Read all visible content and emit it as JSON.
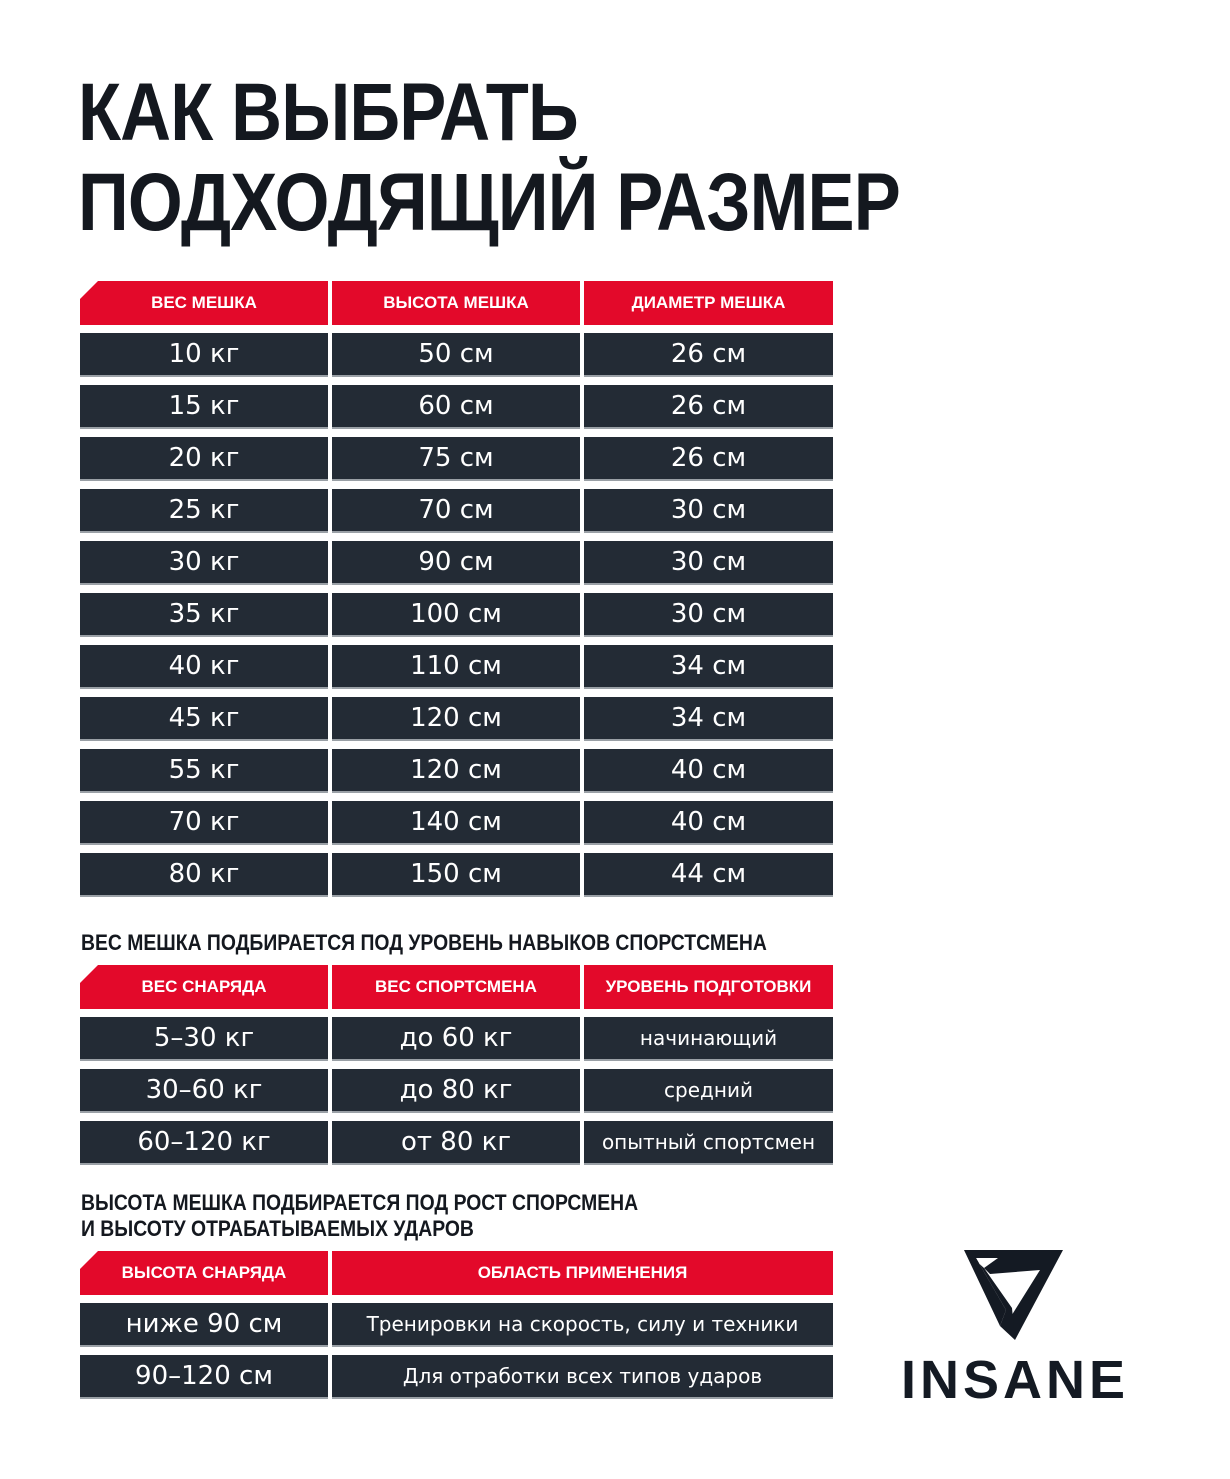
{
  "title": {
    "line1": "КАК ВЫБРАТЬ",
    "line2": "ПОДХОДЯЩИЙ РАЗМЕР"
  },
  "colors": {
    "accent": "#e3092a",
    "row": "#232b35",
    "text": "#14181f"
  },
  "size_table": {
    "headers": [
      "ВЕС МЕШКА",
      "ВЫСОТА МЕШКА",
      "ДИАМЕТР МЕШКА"
    ],
    "rows": [
      [
        "10 кг",
        "50 см",
        "26 см"
      ],
      [
        "15 кг",
        "60 см",
        "26 см"
      ],
      [
        "20 кг",
        "75 см",
        "26 см"
      ],
      [
        "25 кг",
        "70 см",
        "30 см"
      ],
      [
        "30 кг",
        "90 см",
        "30 см"
      ],
      [
        "35 кг",
        "100 см",
        "30 см"
      ],
      [
        "40 кг",
        "110 см",
        "34 см"
      ],
      [
        "45 кг",
        "120 см",
        "34 см"
      ],
      [
        "55 кг",
        "120 см",
        "40 см"
      ],
      [
        "70 кг",
        "140 см",
        "40 см"
      ],
      [
        "80 кг",
        "150 см",
        "44 см"
      ]
    ]
  },
  "weight_section": {
    "title": "ВЕС МЕШКА ПОДБИРАЕТСЯ ПОД УРОВЕНЬ НАВЫКОВ СПОРСТСМЕНА",
    "headers": [
      "ВЕС СНАРЯДА",
      "ВЕС СПОРТСМЕНА",
      "УРОВЕНЬ ПОДГОТОВКИ"
    ],
    "rows": [
      [
        "5–30 кг",
        "до 60 кг",
        "начинающий"
      ],
      [
        "30–60 кг",
        "до 80 кг",
        "средний"
      ],
      [
        "60–120 кг",
        "от 80 кг",
        "опытный спортсмен"
      ]
    ]
  },
  "height_section": {
    "title_line1": "ВЫСОТА МЕШКА ПОДБИРАЕТСЯ ПОД РОСТ СПОРСМЕНА",
    "title_line2": "И ВЫСОТУ ОТРАБАТЫВАЕМЫХ УДАРОВ",
    "headers": [
      "ВЫСОТА СНАРЯДА",
      "ОБЛАСТЬ ПРИМЕНЕНИЯ"
    ],
    "rows": [
      [
        "ниже 90 см",
        "Тренировки на скорость, силу и техники"
      ],
      [
        "90–120 см",
        "Для отработки всех типов ударов"
      ]
    ]
  },
  "logo": {
    "text": "INSANE",
    "icon": "triangle-logo-icon"
  }
}
